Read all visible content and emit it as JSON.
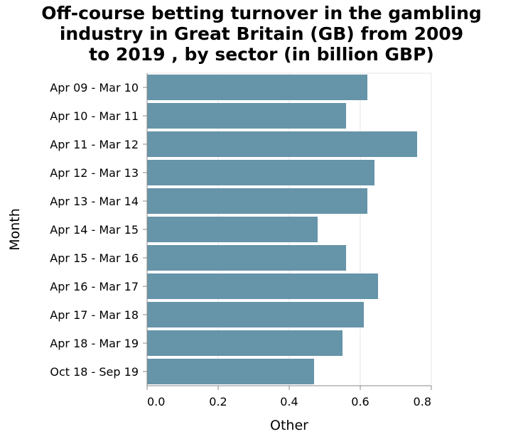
{
  "chart_data": {
    "type": "bar",
    "orientation": "horizontal",
    "title_lines": [
      "Off-course betting turnover in the gambling",
      "industry in Great Britain (GB) from 2009",
      "to 2019 , by sector (in billion GBP)"
    ],
    "categories": [
      "Apr 09 - Mar 10",
      "Apr 10 - Mar 11",
      "Apr 11 - Mar 12",
      "Apr 12 - Mar 13",
      "Apr 13 - Mar 14",
      "Apr 14 - Mar 15",
      "Apr 15 - Mar 16",
      "Apr 16 - Mar 17",
      "Apr 17 - Mar 18",
      "Apr 18 - Mar 19",
      "Oct 18 - Sep 19"
    ],
    "series": [
      {
        "values": [
          0.62,
          0.56,
          0.76,
          0.64,
          0.62,
          0.48,
          0.56,
          0.65,
          0.61,
          0.55,
          0.47
        ]
      }
    ],
    "xlabel": "Other",
    "ylabel": "Month",
    "xlim": [
      0,
      0.8
    ],
    "xticks": [
      0.0,
      0.2,
      0.4,
      0.6,
      0.8
    ],
    "xtick_labels": [
      "0.0",
      "0.2",
      "0.4",
      "0.6",
      "0.8"
    ],
    "grid": true,
    "legend": "none",
    "colors": {
      "bar": "#6694a8",
      "grid": "#e6e6e6",
      "axis": "#888888",
      "text": "#000000"
    }
  }
}
